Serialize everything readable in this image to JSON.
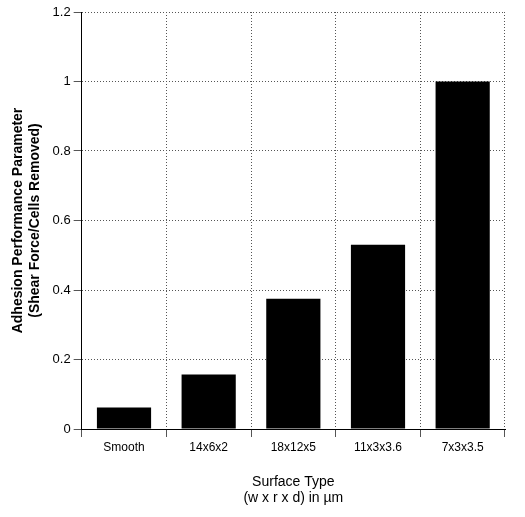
{
  "chart_data": {
    "type": "bar",
    "categories": [
      "Smooth",
      "14x6x2",
      "18x12x5",
      "11x3x3.6",
      "7x3x3.5"
    ],
    "values": [
      0.062,
      0.157,
      0.375,
      0.53,
      1.0
    ],
    "color": "#000000",
    "y_label": [
      "Adhesion Performance Parameter",
      "(Shear Force/Cells Removed)"
    ],
    "x_label": [
      "Surface Type",
      "(w x r x d) in µm"
    ],
    "ylim": [
      0,
      1.2
    ],
    "yticks": [
      0,
      0.2,
      0.4,
      0.6,
      0.8,
      1,
      1.2
    ],
    "grid": true
  }
}
